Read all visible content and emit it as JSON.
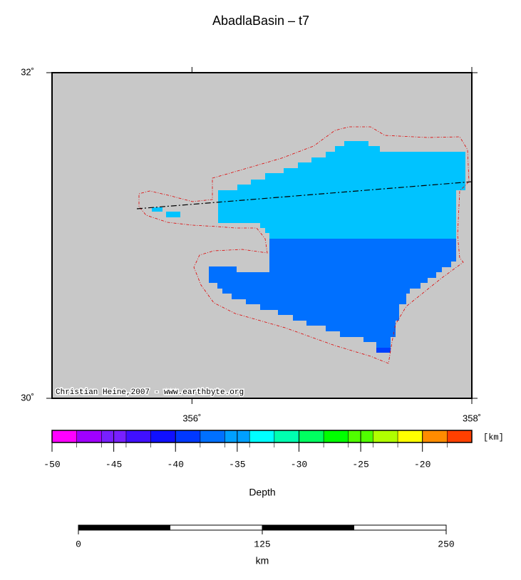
{
  "title": "AbadlaBasin – t7",
  "map": {
    "xlim": [
      355,
      358
    ],
    "ylim": [
      30,
      32
    ],
    "xticks": [
      {
        "value": 356,
        "label": "356˚"
      },
      {
        "value": 358,
        "label": "358˚"
      }
    ],
    "yticks": [
      {
        "value": 30,
        "label": "30˚"
      },
      {
        "value": 32,
        "label": "32˚"
      }
    ],
    "credit": "Christian Heine,2007 - www.earthbyte.org"
  },
  "colorbar": {
    "label": "Depth",
    "unit": "[km]",
    "lim": [
      -50,
      -16
    ],
    "ticks": [
      -50,
      -45,
      -40,
      -35,
      -30,
      -25,
      -20
    ]
  },
  "scalebar": {
    "label": "km",
    "lim": [
      0,
      250
    ],
    "ticks": [
      0,
      125,
      250
    ]
  }
}
